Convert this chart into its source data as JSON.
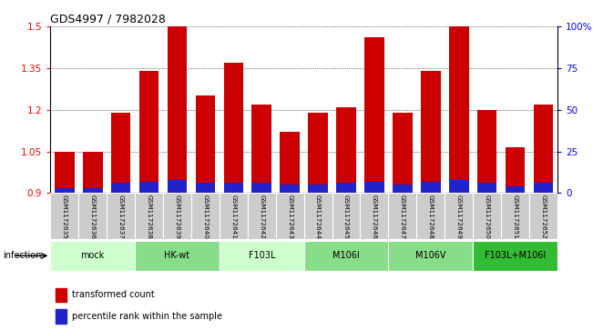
{
  "title": "GDS4997 / 7982028",
  "samples": [
    "GSM1172635",
    "GSM1172636",
    "GSM1172637",
    "GSM1172638",
    "GSM1172639",
    "GSM1172640",
    "GSM1172641",
    "GSM1172642",
    "GSM1172643",
    "GSM1172644",
    "GSM1172645",
    "GSM1172646",
    "GSM1172647",
    "GSM1172648",
    "GSM1172649",
    "GSM1172650",
    "GSM1172651",
    "GSM1172652"
  ],
  "transformed_count": [
    1.048,
    1.048,
    1.19,
    1.34,
    1.5,
    1.25,
    1.37,
    1.22,
    1.12,
    1.19,
    1.21,
    1.46,
    1.19,
    1.34,
    1.5,
    1.2,
    1.065,
    1.22
  ],
  "percentile_rank_right": [
    3,
    3,
    6,
    7,
    8,
    6,
    6,
    6,
    5,
    5,
    6,
    7,
    5,
    7,
    8,
    6,
    4,
    6
  ],
  "groups": [
    {
      "label": "mock",
      "start": 0,
      "end": 3,
      "color": "#ccffcc"
    },
    {
      "label": "HK-wt",
      "start": 3,
      "end": 6,
      "color": "#88dd88"
    },
    {
      "label": "F103L",
      "start": 6,
      "end": 9,
      "color": "#ccffcc"
    },
    {
      "label": "M106I",
      "start": 9,
      "end": 12,
      "color": "#88dd88"
    },
    {
      "label": "M106V",
      "start": 12,
      "end": 15,
      "color": "#88dd88"
    },
    {
      "label": "F103L+M106I",
      "start": 15,
      "end": 18,
      "color": "#33bb33"
    }
  ],
  "ylim_left": [
    0.9,
    1.5
  ],
  "ylim_right": [
    0,
    100
  ],
  "yticks_left": [
    0.9,
    1.05,
    1.2,
    1.35,
    1.5
  ],
  "yticks_right": [
    0,
    25,
    50,
    75,
    100
  ],
  "ytick_labels_left": [
    "0.9",
    "1.05",
    "1.2",
    "1.35",
    "1.5"
  ],
  "ytick_labels_right": [
    "0",
    "25",
    "50",
    "75",
    "100%"
  ],
  "bar_color_red": "#cc0000",
  "bar_color_blue": "#2222cc",
  "bar_width": 0.7,
  "xlabel_infection": "infection",
  "legend1": "transformed count",
  "legend2": "percentile rank within the sample",
  "sample_box_color": "#cccccc"
}
